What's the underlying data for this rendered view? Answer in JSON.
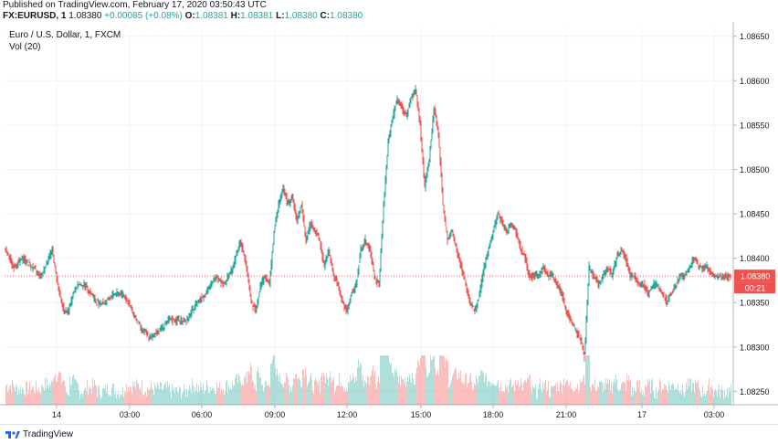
{
  "header": {
    "published": "Published on TradingView.com, February 17, 2020 03:50:43 UTC",
    "symbol": "FX:EURUSD, 1",
    "last": "1.08380",
    "change": "+0.00085 (+0.08%)",
    "o_label": "O:",
    "o": "1.08381",
    "h_label": "H:",
    "h": "1.08381",
    "l_label": "L:",
    "l": "1.08380",
    "c_label": "C:",
    "c": "1.08380"
  },
  "legend": {
    "title": "Euro / U.S. Dollar, 1, FXCM",
    "volume": "Vol (20)"
  },
  "price_label": {
    "value": "1.08380",
    "countdown": "00:21"
  },
  "footer": {
    "brand": "TradingView"
  },
  "chart_data": {
    "type": "line",
    "title": "Euro / U.S. Dollar, 1, FXCM",
    "ylim": [
      1.08235,
      1.0866
    ],
    "y_ticks": [
      "1.08650",
      "1.08600",
      "1.08550",
      "1.08500",
      "1.08450",
      "1.08400",
      "1.08350",
      "1.08300",
      "1.08250"
    ],
    "x_ticks": [
      "14",
      "03:00",
      "06:00",
      "09:00",
      "12:00",
      "15:00",
      "18:00",
      "21:00",
      "17",
      "03:00"
    ],
    "x_tick_index": [
      57,
      137,
      216,
      296,
      375,
      456,
      535,
      615,
      698,
      777
    ],
    "last_price": 1.0838,
    "colors": {
      "up": "#26a69a",
      "down": "#ef5350",
      "price_line": "#ef5350",
      "grid": "#f0f3fa"
    },
    "x": [
      0,
      10,
      20,
      30,
      40,
      52,
      55,
      60,
      65,
      70,
      75,
      80,
      88,
      95,
      100,
      110,
      120,
      130,
      140,
      150,
      160,
      170,
      180,
      190,
      200,
      210,
      220,
      232,
      240,
      250,
      258,
      265,
      270,
      275,
      280,
      285,
      290,
      295,
      300,
      305,
      310,
      315,
      320,
      325,
      330,
      335,
      340,
      345,
      350,
      355,
      360,
      365,
      370,
      375,
      380,
      385,
      390,
      395,
      400,
      405,
      410,
      415,
      420,
      425,
      430,
      435,
      440,
      445,
      450,
      455,
      460,
      465,
      470,
      475,
      480,
      485,
      490,
      495,
      500,
      505,
      510,
      515,
      520,
      525,
      530,
      535,
      540,
      545,
      550,
      555,
      560,
      565,
      570,
      575,
      580,
      585,
      590,
      595,
      600,
      605,
      610,
      615,
      620,
      625,
      630,
      635,
      640,
      645,
      650,
      655,
      660,
      665,
      670,
      675,
      680,
      685,
      690,
      695,
      700,
      705,
      710,
      715,
      720,
      725,
      730,
      735,
      740,
      745,
      750,
      755,
      760,
      765,
      770,
      775,
      780,
      785,
      790,
      795
    ],
    "values": [
      1.0841,
      1.0839,
      1.084,
      1.0839,
      1.0838,
      1.0841,
      1.0839,
      1.0836,
      1.0834,
      1.0834,
      1.0836,
      1.0837,
      1.0837,
      1.0836,
      1.0835,
      1.0835,
      1.0836,
      1.0836,
      1.0834,
      1.0832,
      1.0831,
      1.0832,
      1.0833,
      1.0833,
      1.0833,
      1.0835,
      1.0836,
      1.0838,
      1.0837,
      1.0839,
      1.0842,
      1.0839,
      1.0835,
      1.0834,
      1.0837,
      1.0838,
      1.0837,
      1.0843,
      1.0846,
      1.0848,
      1.0846,
      1.0847,
      1.0844,
      1.0846,
      1.0842,
      1.0844,
      1.0843,
      1.0842,
      1.0839,
      1.0841,
      1.0838,
      1.0837,
      1.0835,
      1.0834,
      1.0836,
      1.0837,
      1.0841,
      1.0842,
      1.0841,
      1.0838,
      1.0837,
      1.0846,
      1.0853,
      1.0856,
      1.0858,
      1.0857,
      1.0856,
      1.0858,
      1.0859,
      1.0855,
      1.0848,
      1.0851,
      1.0857,
      1.0854,
      1.0846,
      1.0842,
      1.0843,
      1.0841,
      1.0839,
      1.0837,
      1.0835,
      1.0834,
      1.0836,
      1.0839,
      1.0841,
      1.0843,
      1.0845,
      1.0844,
      1.0843,
      1.0844,
      1.0843,
      1.0841,
      1.084,
      1.0838,
      1.0838,
      1.0838,
      1.0839,
      1.0838,
      1.0838,
      1.0837,
      1.0836,
      1.0834,
      1.0833,
      1.0832,
      1.0831,
      1.0829,
      1.0839,
      1.0838,
      1.0837,
      1.0838,
      1.0839,
      1.0838,
      1.084,
      1.0841,
      1.084,
      1.0838,
      1.0838,
      1.0837,
      1.0837,
      1.0836,
      1.0837,
      1.0837,
      1.0836,
      1.0835,
      1.0836,
      1.0837,
      1.0838,
      1.0838,
      1.0839,
      1.084,
      1.0839,
      1.0839,
      1.0839,
      1.0838,
      1.0838,
      1.0838,
      1.0838,
      1.0838
    ]
  }
}
